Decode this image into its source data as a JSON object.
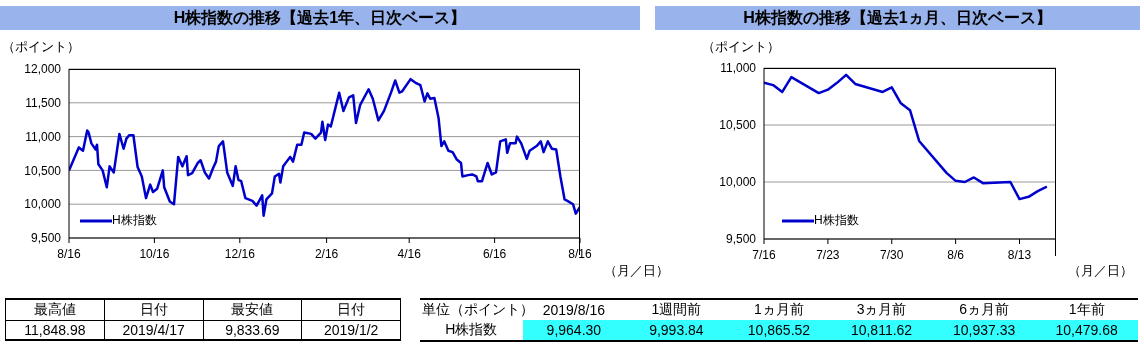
{
  "chart_data": [
    {
      "type": "line",
      "title": "H株指数の推移【過去1年、日次ベース】",
      "ylabel": "（ポイント）",
      "xlabel": "（月／日）",
      "x": [
        "2018-08-16",
        "2018-08-23",
        "2018-08-26",
        "2018-08-29",
        "2018-08-30",
        "2018-09-01",
        "2018-09-04",
        "2018-09-05",
        "2018-09-06",
        "2018-09-09",
        "2018-09-12",
        "2018-09-14",
        "2018-09-17",
        "2018-09-21",
        "2018-09-24",
        "2018-09-26",
        "2018-09-28",
        "2018-10-01",
        "2018-10-04",
        "2018-10-07",
        "2018-10-10",
        "2018-10-13",
        "2018-10-15",
        "2018-10-18",
        "2018-10-22",
        "2018-10-23",
        "2018-10-27",
        "2018-10-30",
        "2018-11-02",
        "2018-11-05",
        "2018-11-08",
        "2018-11-09",
        "2018-11-12",
        "2018-11-16",
        "2018-11-18",
        "2018-11-21",
        "2018-11-24",
        "2018-11-27",
        "2018-11-29",
        "2018-12-01",
        "2018-12-04",
        "2018-12-07",
        "2018-12-11",
        "2018-12-13",
        "2018-12-15",
        "2018-12-17",
        "2018-12-20",
        "2018-12-25",
        "2018-12-28",
        "2019-01-01",
        "2019-01-02",
        "2019-01-04",
        "2019-01-08",
        "2019-01-10",
        "2019-01-13",
        "2019-01-14",
        "2019-01-16",
        "2019-01-21",
        "2019-01-23",
        "2019-01-26",
        "2019-01-29",
        "2019-01-31",
        "2019-02-05",
        "2019-02-08",
        "2019-02-12",
        "2019-02-13",
        "2019-02-15",
        "2019-02-17",
        "2019-02-19",
        "2019-02-25",
        "2019-02-28",
        "2019-03-04",
        "2019-03-07",
        "2019-03-09",
        "2019-03-12",
        "2019-03-18",
        "2019-03-21",
        "2019-03-25",
        "2019-03-29",
        "2019-04-03",
        "2019-04-06",
        "2019-04-09",
        "2019-04-11",
        "2019-04-17",
        "2019-04-21",
        "2019-04-24",
        "2019-04-27",
        "2019-04-29",
        "2019-05-01",
        "2019-05-04",
        "2019-05-07",
        "2019-05-09",
        "2019-05-11",
        "2019-05-14",
        "2019-05-17",
        "2019-05-20",
        "2019-05-23",
        "2019-05-24",
        "2019-05-28",
        "2019-05-31",
        "2019-06-03",
        "2019-06-04",
        "2019-06-07",
        "2019-06-11",
        "2019-06-14",
        "2019-06-17",
        "2019-06-20",
        "2019-06-24",
        "2019-06-25",
        "2019-06-27",
        "2019-07-01",
        "2019-07-02",
        "2019-07-05",
        "2019-07-09",
        "2019-07-11",
        "2019-07-16",
        "2019-07-19",
        "2019-07-21",
        "2019-07-24",
        "2019-07-27",
        "2019-07-30",
        "2019-08-02",
        "2019-08-05",
        "2019-08-07",
        "2019-08-11",
        "2019-08-13",
        "2019-08-16"
      ],
      "series": [
        {
          "name": "H株指数",
          "color": "#0000cc",
          "values": [
            10500,
            10840,
            10790,
            11090,
            11060,
            10900,
            10810,
            10880,
            10590,
            10500,
            10250,
            10560,
            10470,
            11040,
            10820,
            10970,
            11020,
            11020,
            10550,
            10410,
            10090,
            10290,
            10180,
            10230,
            10500,
            10250,
            10040,
            10000,
            10700,
            10560,
            10710,
            10430,
            10460,
            10610,
            10650,
            10470,
            10380,
            10540,
            10630,
            10860,
            10930,
            10470,
            10270,
            10560,
            10360,
            10340,
            10090,
            10050,
            9980,
            10130,
            9830,
            10070,
            10160,
            10410,
            10450,
            10320,
            10560,
            10700,
            10630,
            10880,
            10880,
            11060,
            11040,
            10970,
            11060,
            11220,
            10950,
            11180,
            11150,
            11650,
            11380,
            11580,
            11610,
            11200,
            11470,
            11700,
            11560,
            11240,
            11380,
            11650,
            11830,
            11650,
            11670,
            11850,
            11790,
            11760,
            11520,
            11640,
            11560,
            11570,
            11270,
            10860,
            10930,
            10790,
            10770,
            10660,
            10610,
            10410,
            10430,
            10440,
            10410,
            10340,
            10340,
            10610,
            10440,
            10470,
            10930,
            10960,
            10760,
            10900,
            10900,
            11000,
            10900,
            10670,
            10790,
            10860,
            10930,
            10770,
            10930,
            10820,
            10810,
            10410,
            10070,
            10050,
            10000,
            9860,
            9960
          ]
        }
      ],
      "xlim": [
        "2018-08-16",
        "2019-08-16"
      ],
      "xticks": [
        {
          "value": "2018-08-16",
          "label": "8/16"
        },
        {
          "value": "2018-10-16",
          "label": "10/16"
        },
        {
          "value": "2018-12-16",
          "label": "12/16"
        },
        {
          "value": "2019-02-16",
          "label": "2/16"
        },
        {
          "value": "2019-04-16",
          "label": "4/16"
        },
        {
          "value": "2019-06-16",
          "label": "6/16"
        },
        {
          "value": "2019-08-16",
          "label": "8/16"
        }
      ],
      "ylim": [
        9500,
        12000
      ],
      "yticks": [
        {
          "value": 9500,
          "label": "9,500"
        },
        {
          "value": 10000,
          "label": "10,000"
        },
        {
          "value": 10500,
          "label": "10,500"
        },
        {
          "value": 11000,
          "label": "11,000"
        },
        {
          "value": 11500,
          "label": "11,500"
        },
        {
          "value": 12000,
          "label": "12,000"
        }
      ],
      "grid": "y",
      "legend": "bottom left",
      "marker": "none",
      "line_style": "solid"
    },
    {
      "type": "line",
      "title": "H株指数の推移【過去1ヵ月、日次ベース】",
      "ylabel": "（ポイント）",
      "xlabel": "（月／日）",
      "x": [
        "2019-07-16",
        "2019-07-17",
        "2019-07-18",
        "2019-07-19",
        "2019-07-22",
        "2019-07-23",
        "2019-07-24",
        "2019-07-25",
        "2019-07-26",
        "2019-07-29",
        "2019-07-30",
        "2019-07-31",
        "2019-08-01",
        "2019-08-02",
        "2019-08-05",
        "2019-08-06",
        "2019-08-07",
        "2019-08-08",
        "2019-08-09",
        "2019-08-12",
        "2019-08-13",
        "2019-08-14",
        "2019-08-15",
        "2019-08-16"
      ],
      "series": [
        {
          "name": "H株指数",
          "color": "#0000cc",
          "values": [
            10870,
            10850,
            10790,
            10920,
            10780,
            10810,
            10870,
            10940,
            10860,
            10790,
            10830,
            10690,
            10630,
            10360,
            10080,
            10010,
            10000,
            10040,
            9990,
            10000,
            9850,
            9870,
            9920,
            9960
          ]
        }
      ],
      "xlim": [
        "2019-07-16",
        "2019-08-17"
      ],
      "xticks": [
        {
          "value": "2019-07-16",
          "label": "7/16"
        },
        {
          "value": "2019-07-23",
          "label": "7/23"
        },
        {
          "value": "2019-07-30",
          "label": "7/30"
        },
        {
          "value": "2019-08-06",
          "label": "8/6"
        },
        {
          "value": "2019-08-13",
          "label": "8/13"
        }
      ],
      "ylim": [
        9500,
        11000
      ],
      "yticks": [
        {
          "value": 9500,
          "label": "9,500"
        },
        {
          "value": 10000,
          "label": "10,000"
        },
        {
          "value": 10500,
          "label": "10,500"
        },
        {
          "value": 11000,
          "label": "11,000"
        }
      ],
      "grid": "y",
      "legend": "bottom left",
      "marker": "none",
      "line_style": "solid"
    },
    {
      "type": "other",
      "annotations": [
        "最高値",
        "日付",
        "最安値",
        "日付",
        "11,848.98",
        "2019/4/17",
        "9,833.69",
        "2019/1/2"
      ]
    },
    {
      "type": "other",
      "annotations": [
        "単位（ポイント）",
        "2019/8/16",
        "1週間前",
        "1ヵ月前",
        "3ヵ月前",
        "6ヵ月前",
        "1年前",
        "H株指数",
        "9,964.30",
        "9,993.84",
        "10,865.52",
        "10,811.62",
        "10,937.33",
        "10,479.68"
      ]
    }
  ]
}
